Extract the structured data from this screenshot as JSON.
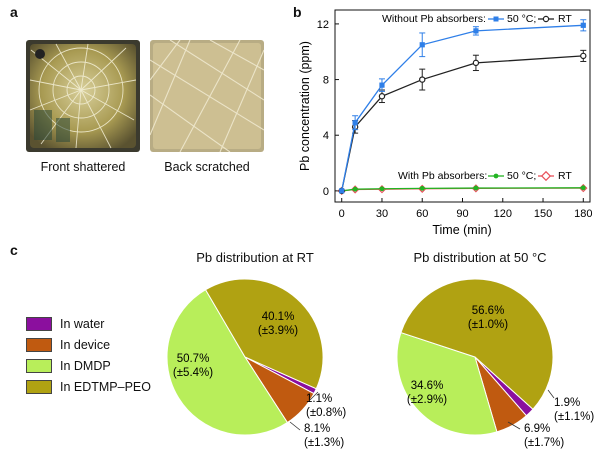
{
  "panels": {
    "a": "a",
    "b": "b",
    "c": "c"
  },
  "photos": {
    "front_caption": "Front shattered",
    "back_caption": "Back scratched"
  },
  "colors": {
    "blue": "#2f7fe8",
    "black": "#222222",
    "green": "#22b422",
    "red": "#e8505a",
    "water": "#8b0f9e",
    "device": "#c05a10",
    "dmdp": "#b8ee5a",
    "edtmp": "#b0a212"
  },
  "chart_data": [
    {
      "type": "line",
      "xlabel": "Time (min)",
      "ylabel": "Pb concentration (ppm)",
      "xlim": [
        -5,
        185
      ],
      "ylim": [
        -0.8,
        13
      ],
      "xticks": [
        0,
        30,
        60,
        90,
        120,
        150,
        180
      ],
      "yticks": [
        0,
        4,
        8,
        12
      ],
      "legend_groups": [
        {
          "label": "Without Pb absorbers:",
          "entries": [
            "50 °C;",
            "RT"
          ]
        },
        {
          "label": "With Pb absorbers:",
          "entries": [
            "50 °C;",
            "RT"
          ]
        }
      ],
      "series": [
        {
          "name": "Without Pb absorbers 50 °C",
          "color": "#2f7fe8",
          "marker": "square",
          "x": [
            0,
            10,
            30,
            60,
            100,
            180
          ],
          "y": [
            0,
            4.9,
            7.6,
            10.5,
            11.5,
            11.9
          ],
          "err": [
            0,
            0.5,
            0.45,
            0.85,
            0.3,
            0.4
          ]
        },
        {
          "name": "Without Pb absorbers RT",
          "color": "#222222",
          "marker": "circle",
          "x": [
            0,
            10,
            30,
            60,
            100,
            180
          ],
          "y": [
            0,
            4.6,
            6.8,
            8.0,
            9.2,
            9.7
          ],
          "err": [
            0,
            0.45,
            0.45,
            0.75,
            0.55,
            0.4
          ]
        },
        {
          "name": "With Pb absorbers 50 °C",
          "color": "#22b422",
          "marker": "circle",
          "x": [
            0,
            10,
            30,
            60,
            100,
            180
          ],
          "y": [
            0,
            0.12,
            0.15,
            0.18,
            0.2,
            0.22
          ],
          "err": [
            0,
            0.08,
            0.08,
            0.08,
            0.08,
            0.08
          ]
        },
        {
          "name": "With Pb absorbers RT",
          "color": "#e8505a",
          "marker": "diamond",
          "x": [
            0,
            10,
            30,
            60,
            100,
            180
          ],
          "y": [
            0,
            0.1,
            0.12,
            0.15,
            0.18,
            0.2
          ],
          "err": [
            0,
            0.08,
            0.08,
            0.08,
            0.08,
            0.08
          ]
        }
      ]
    },
    {
      "type": "pie",
      "title": "Pb distribution at RT",
      "categories": [
        "In water",
        "In device",
        "In DMDP",
        "In EDTMP–PEO"
      ],
      "values": [
        1.1,
        8.1,
        50.7,
        40.1
      ],
      "errors": [
        0.8,
        1.3,
        5.4,
        3.9
      ],
      "labels": {
        "water": [
          "1.1%",
          "(±0.8%)"
        ],
        "device": [
          "8.1%",
          "(±1.3%)"
        ],
        "dmdp": [
          "50.7%",
          "(±5.4%)"
        ],
        "edtmp": [
          "40.1%",
          "(±3.9%)"
        ]
      }
    },
    {
      "type": "pie",
      "title": "Pb distribution at 50 °C",
      "categories": [
        "In water",
        "In device",
        "In DMDP",
        "In EDTMP–PEO"
      ],
      "values": [
        1.9,
        6.9,
        34.6,
        56.6
      ],
      "errors": [
        1.1,
        1.7,
        2.9,
        1.0
      ],
      "labels": {
        "water": [
          "1.9%",
          "(±1.1%)"
        ],
        "device": [
          "6.9%",
          "(±1.7%)"
        ],
        "dmdp": [
          "34.6%",
          "(±2.9%)"
        ],
        "edtmp": [
          "56.6%",
          "(±1.0%)"
        ]
      }
    }
  ],
  "legend": [
    "In water",
    "In device",
    "In DMDP",
    "In EDTMP–PEO"
  ]
}
